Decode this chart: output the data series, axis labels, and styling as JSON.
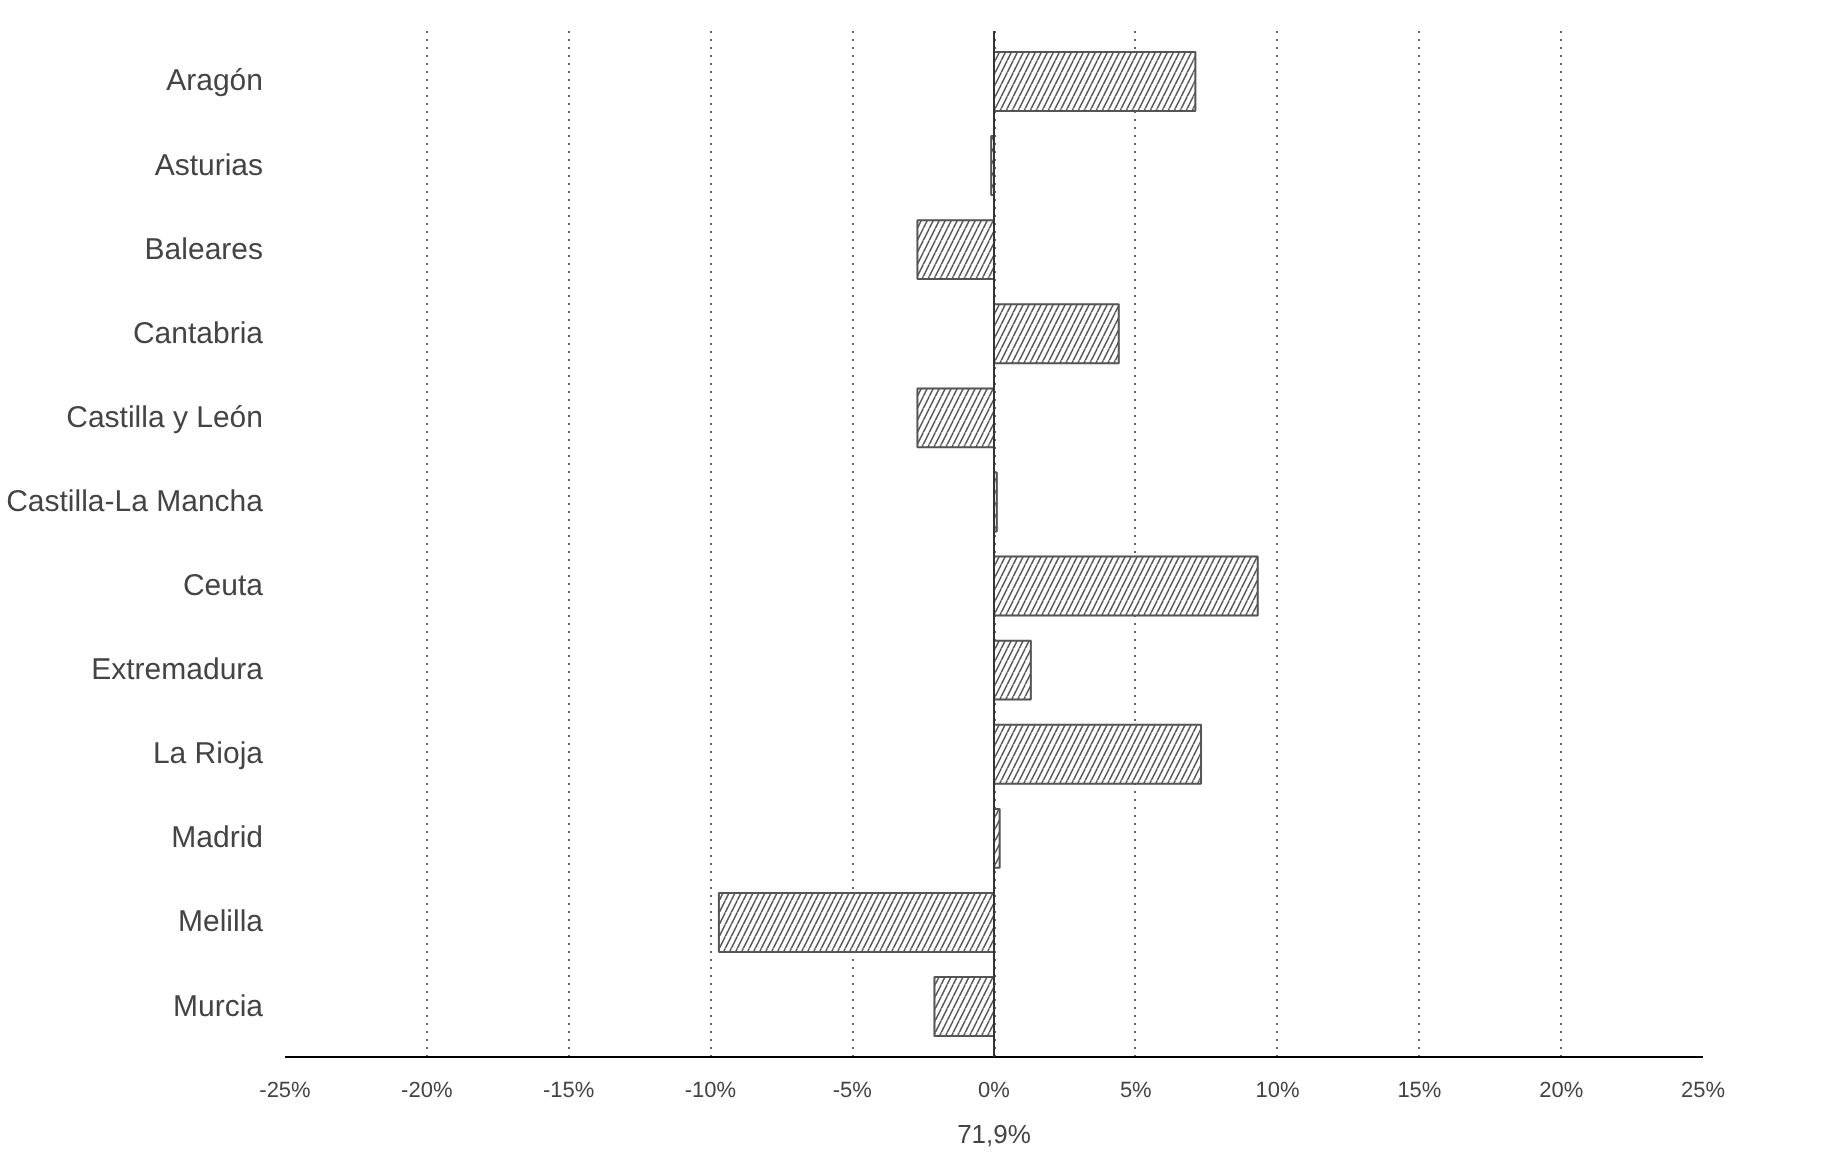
{
  "chart_data": {
    "type": "bar",
    "orientation": "horizontal",
    "categories": [
      "Aragón",
      "Asturias",
      "Baleares",
      "Cantabria",
      "Castilla y León",
      "Castilla-La Mancha",
      "Ceuta",
      "Extremadura",
      "La Rioja",
      "Madrid",
      "Melilla",
      "Murcia"
    ],
    "values": [
      7.1,
      -0.1,
      -2.7,
      4.4,
      -2.7,
      0.1,
      9.3,
      1.3,
      7.3,
      0.2,
      -9.7,
      -2.1
    ],
    "color": "#555555",
    "xlabel": "71,9%",
    "xlim": [
      -25,
      25
    ],
    "xticks": [
      {
        "value": -25,
        "label": "-25%"
      },
      {
        "value": -20,
        "label": "-20%"
      },
      {
        "value": -15,
        "label": "-15%"
      },
      {
        "value": -10,
        "label": "-10%"
      },
      {
        "value": -5,
        "label": "-5%"
      },
      {
        "value": 0,
        "label": "0%"
      },
      {
        "value": 5,
        "label": "5%"
      },
      {
        "value": 10,
        "label": "10%"
      },
      {
        "value": 15,
        "label": "15%"
      },
      {
        "value": 20,
        "label": "20%"
      },
      {
        "value": 25,
        "label": "25%"
      }
    ],
    "grid": "x"
  }
}
